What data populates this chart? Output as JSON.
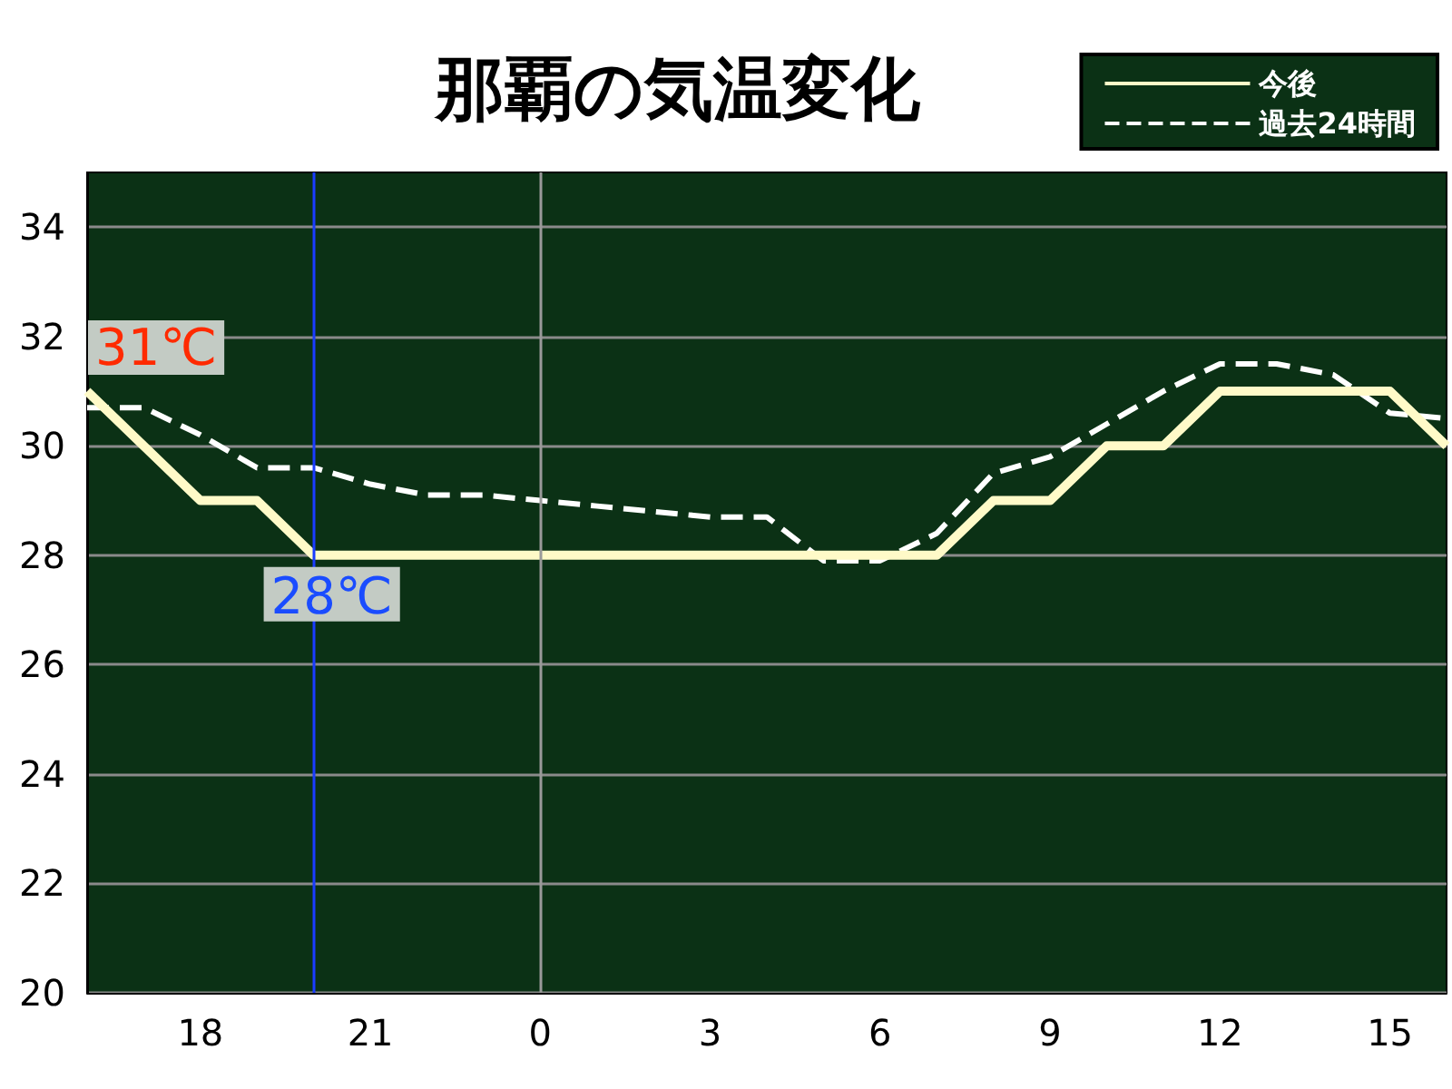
{
  "chart_data": {
    "type": "line",
    "title": "那覇の気温変化",
    "categories": [
      null,
      null,
      "18",
      null,
      null,
      "21",
      null,
      null,
      "0",
      null,
      null,
      "3",
      null,
      null,
      "6",
      null,
      null,
      "9",
      null,
      null,
      "12",
      null,
      null,
      "15",
      null
    ],
    "series": [
      {
        "name": "今後",
        "color": "#fffac8",
        "line_style": "solid",
        "values": [
          31,
          30,
          29,
          29,
          28,
          28,
          28,
          28,
          28,
          28,
          28,
          28,
          28,
          28,
          28,
          28,
          29,
          29,
          30,
          30,
          31,
          31,
          31,
          31,
          30
        ]
      },
      {
        "name": "過去24時間",
        "color": "#ffffff",
        "line_style": "dashed",
        "values": [
          30.7,
          30.7,
          30.2,
          29.6,
          29.6,
          29.3,
          29.1,
          29.1,
          29.0,
          28.9,
          28.8,
          28.7,
          28.7,
          27.9,
          27.9,
          28.4,
          29.5,
          29.8,
          30.4,
          31.0,
          31.5,
          31.5,
          31.3,
          30.6,
          30.5
        ]
      }
    ],
    "ylim": [
      20,
      35
    ],
    "yticks": [
      20,
      22,
      24,
      26,
      28,
      30,
      32,
      34
    ],
    "grid": "y",
    "legend": "top right",
    "marker": "none",
    "ref_lines": [
      {
        "axis": "x",
        "value": "0",
        "color": "#9a9a9a"
      }
    ],
    "annotations": [
      "31℃",
      "28℃"
    ]
  }
}
